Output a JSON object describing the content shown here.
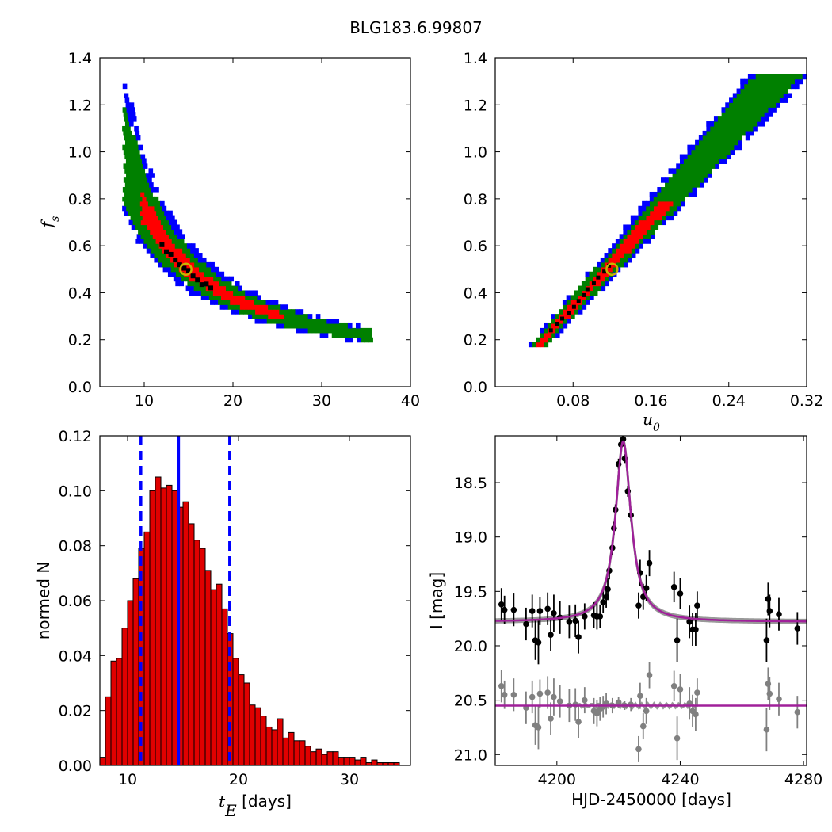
{
  "figure_title": "BLG183.6.99807",
  "colors": {
    "contour_outer": "#0000ff",
    "contour_mid": "#008000",
    "contour_inner": "#ff0000",
    "contour_core": "#000000",
    "best_fit_marker": "#c8b400",
    "hist_bar": "#e00000",
    "hist_lines": "#0000ff",
    "model_curve": "#a0209a",
    "data_black": "#000000",
    "data_gray": "#808080"
  },
  "chart_data": [
    {
      "type": "heatmap",
      "panel": "top-left",
      "xlabel": "",
      "ylabel": "f_s",
      "xlim": [
        5,
        40
      ],
      "ylim": [
        0.0,
        1.4
      ],
      "xticks": [
        "10",
        "20",
        "30",
        "40"
      ],
      "yticks": [
        "0.0",
        "0.2",
        "0.4",
        "0.6",
        "0.8",
        "1.0",
        "1.2",
        "1.4"
      ],
      "best_fit": {
        "x": 14.7,
        "y": 0.5
      },
      "confidence_bands": {
        "description": "fs decreasing with tE, roughly fs = 7.3 / tE",
        "center": [
          [
            8,
            1.3
          ],
          [
            10,
            0.95
          ],
          [
            12,
            0.68
          ],
          [
            14,
            0.53
          ],
          [
            16,
            0.44
          ],
          [
            18,
            0.38
          ],
          [
            20,
            0.33
          ],
          [
            24,
            0.26
          ],
          [
            28,
            0.21
          ],
          [
            32,
            0.19
          ],
          [
            35,
            0.18
          ]
        ],
        "outer_halfwidth": 0.05,
        "mid_halfwidth": 0.035,
        "inner_range_x": [
          9.5,
          25
        ],
        "core_range_x": [
          12,
          17
        ]
      }
    },
    {
      "type": "heatmap",
      "panel": "top-right",
      "xlabel": "u_0",
      "ylabel": "",
      "xlim": [
        0.0,
        0.32
      ],
      "ylim": [
        0.0,
        1.4
      ],
      "xticks": [
        "0.08",
        "0.16",
        "0.24",
        "0.32"
      ],
      "yticks": [
        "0.0",
        "0.2",
        "0.4",
        "0.6",
        "0.8",
        "1.0",
        "1.2",
        "1.4"
      ],
      "best_fit": {
        "x": 0.12,
        "y": 0.5
      },
      "confidence_bands": {
        "description": "fs increasing roughly linearly with u0",
        "center": [
          [
            0.05,
            0.2
          ],
          [
            0.1,
            0.42
          ],
          [
            0.15,
            0.65
          ],
          [
            0.2,
            0.9
          ],
          [
            0.25,
            1.12
          ],
          [
            0.29,
            1.32
          ]
        ],
        "inner_range_x": [
          0.05,
          0.18
        ],
        "core_range_x": [
          0.07,
          0.12
        ]
      }
    },
    {
      "type": "bar",
      "panel": "bottom-left",
      "xlabel": "t_E [days]",
      "ylabel": "normed N",
      "xlim": [
        7.5,
        35.5
      ],
      "ylim": [
        0.0,
        0.12
      ],
      "xticks": [
        "10",
        "20",
        "30"
      ],
      "yticks": [
        "0.00",
        "0.02",
        "0.04",
        "0.06",
        "0.08",
        "0.10",
        "0.12"
      ],
      "bin_start": 7.5,
      "bin_width": 0.5,
      "values": [
        0.003,
        0.025,
        0.038,
        0.039,
        0.05,
        0.06,
        0.068,
        0.079,
        0.085,
        0.1,
        0.105,
        0.101,
        0.102,
        0.1,
        0.094,
        0.096,
        0.088,
        0.082,
        0.079,
        0.071,
        0.064,
        0.066,
        0.057,
        0.048,
        0.039,
        0.033,
        0.03,
        0.022,
        0.021,
        0.018,
        0.014,
        0.013,
        0.017,
        0.01,
        0.012,
        0.009,
        0.009,
        0.007,
        0.005,
        0.006,
        0.004,
        0.005,
        0.005,
        0.003,
        0.003,
        0.003,
        0.002,
        0.003,
        0.001,
        0.002,
        0.001,
        0.001,
        0.001,
        0.001,
        0.0,
        0.0
      ],
      "vlines": [
        {
          "x": 11.2,
          "style": "dashed",
          "meaning": "lower bound"
        },
        {
          "x": 14.6,
          "style": "solid",
          "meaning": "best fit"
        },
        {
          "x": 19.2,
          "style": "dashed",
          "meaning": "upper bound"
        }
      ]
    },
    {
      "type": "scatter",
      "panel": "bottom-right",
      "xlabel": "HJD-2450000 [days]",
      "ylabel": "I [mag]",
      "xlim": [
        4180,
        4281
      ],
      "ylim": [
        21.1,
        18.07
      ],
      "y_inverted": true,
      "xticks": [
        "4200",
        "4240",
        "4280"
      ],
      "yticks": [
        "18.5",
        "19.0",
        "19.5",
        "20.0",
        "20.5",
        "21.0"
      ],
      "model": {
        "t0": 4221.5,
        "baseline_mag": 19.78,
        "peak_mag": 18.12,
        "tE_days": 4.5
      },
      "residual_model": {
        "baseline_mag": 20.55
      },
      "series": [
        {
          "name": "",
          "color_key": "data_black",
          "points": [
            [
              4182,
              19.62,
              0.15
            ],
            [
              4183,
              19.67,
              0.13
            ],
            [
              4186,
              19.67,
              0.15
            ],
            [
              4190,
              19.8,
              0.15
            ],
            [
              4192,
              19.68,
              0.15
            ],
            [
              4193,
              19.95,
              0.18
            ],
            [
              4194,
              19.97,
              0.2
            ],
            [
              4194.5,
              19.68,
              0.13
            ],
            [
              4197,
              19.66,
              0.15
            ],
            [
              4198,
              19.9,
              0.15
            ],
            [
              4199,
              19.7,
              0.17
            ],
            [
              4201,
              19.74,
              0.15
            ],
            [
              4204,
              19.78,
              0.15
            ],
            [
              4206,
              19.77,
              0.15
            ],
            [
              4207,
              19.92,
              0.15
            ],
            [
              4209,
              19.73,
              0.12
            ],
            [
              4212,
              19.72,
              0.12
            ],
            [
              4213,
              19.73,
              0.12
            ],
            [
              4214,
              19.73,
              0.11
            ],
            [
              4215,
              19.6,
              0.1
            ],
            [
              4216,
              19.55,
              0.1
            ],
            [
              4216.5,
              19.48,
              0.1
            ],
            [
              4217,
              19.31,
              0.08
            ],
            [
              4218,
              19.1,
              0.07
            ],
            [
              4218.5,
              18.92,
              0.06
            ],
            [
              4219,
              18.75,
              0.05
            ],
            [
              4220,
              18.33,
              0.05
            ],
            [
              4220.8,
              18.15,
              0.04
            ],
            [
              4221.5,
              18.1,
              0.04
            ],
            [
              4222,
              18.28,
              0.04
            ],
            [
              4223,
              18.58,
              0.05
            ],
            [
              4224,
              18.8,
              0.06
            ],
            [
              4226.5,
              19.63,
              0.12
            ],
            [
              4227,
              19.33,
              0.12
            ],
            [
              4228,
              19.55,
              0.12
            ],
            [
              4229,
              19.47,
              0.12
            ],
            [
              4230,
              19.24,
              0.12
            ],
            [
              4238,
              19.46,
              0.14
            ],
            [
              4239,
              19.95,
              0.2
            ],
            [
              4240,
              19.52,
              0.14
            ],
            [
              4243,
              19.78,
              0.15
            ],
            [
              4244,
              19.85,
              0.15
            ],
            [
              4245,
              19.85,
              0.15
            ],
            [
              4245.5,
              19.63,
              0.13
            ],
            [
              4268,
              19.95,
              0.2
            ],
            [
              4268.5,
              19.57,
              0.15
            ],
            [
              4269,
              19.68,
              0.15
            ],
            [
              4272,
              19.71,
              0.15
            ],
            [
              4278,
              19.84,
              0.15
            ]
          ]
        },
        {
          "name": "",
          "color_key": "data_gray",
          "points": [
            [
              4182,
              20.37,
              0.15
            ],
            [
              4183,
              20.45,
              0.13
            ],
            [
              4186,
              20.45,
              0.15
            ],
            [
              4190,
              20.57,
              0.15
            ],
            [
              4192,
              20.47,
              0.15
            ],
            [
              4193,
              20.73,
              0.18
            ],
            [
              4194,
              20.75,
              0.2
            ],
            [
              4194.5,
              20.44,
              0.13
            ],
            [
              4197,
              20.43,
              0.15
            ],
            [
              4198,
              20.67,
              0.15
            ],
            [
              4199,
              20.47,
              0.17
            ],
            [
              4201,
              20.51,
              0.15
            ],
            [
              4204,
              20.55,
              0.15
            ],
            [
              4206,
              20.54,
              0.15
            ],
            [
              4207,
              20.7,
              0.15
            ],
            [
              4209,
              20.5,
              0.12
            ],
            [
              4212,
              20.6,
              0.12
            ],
            [
              4213,
              20.62,
              0.12
            ],
            [
              4214,
              20.58,
              0.11
            ],
            [
              4215,
              20.56,
              0.1
            ],
            [
              4216,
              20.53,
              0.1
            ],
            [
              4218,
              20.55,
              0.07
            ],
            [
              4220,
              20.52,
              0.05
            ],
            [
              4222,
              20.55,
              0.04
            ],
            [
              4224,
              20.54,
              0.06
            ],
            [
              4226.5,
              20.95,
              0.12
            ],
            [
              4227,
              20.46,
              0.12
            ],
            [
              4228,
              20.74,
              0.12
            ],
            [
              4229,
              20.6,
              0.12
            ],
            [
              4230,
              20.27,
              0.12
            ],
            [
              4238,
              20.37,
              0.14
            ],
            [
              4239,
              20.85,
              0.2
            ],
            [
              4240,
              20.4,
              0.14
            ],
            [
              4243,
              20.53,
              0.15
            ],
            [
              4244,
              20.6,
              0.15
            ],
            [
              4245,
              20.63,
              0.15
            ],
            [
              4245.5,
              20.43,
              0.13
            ],
            [
              4268,
              20.77,
              0.2
            ],
            [
              4268.5,
              20.35,
              0.15
            ],
            [
              4269,
              20.44,
              0.15
            ],
            [
              4272,
              20.49,
              0.15
            ],
            [
              4278,
              20.61,
              0.15
            ]
          ]
        }
      ]
    }
  ]
}
